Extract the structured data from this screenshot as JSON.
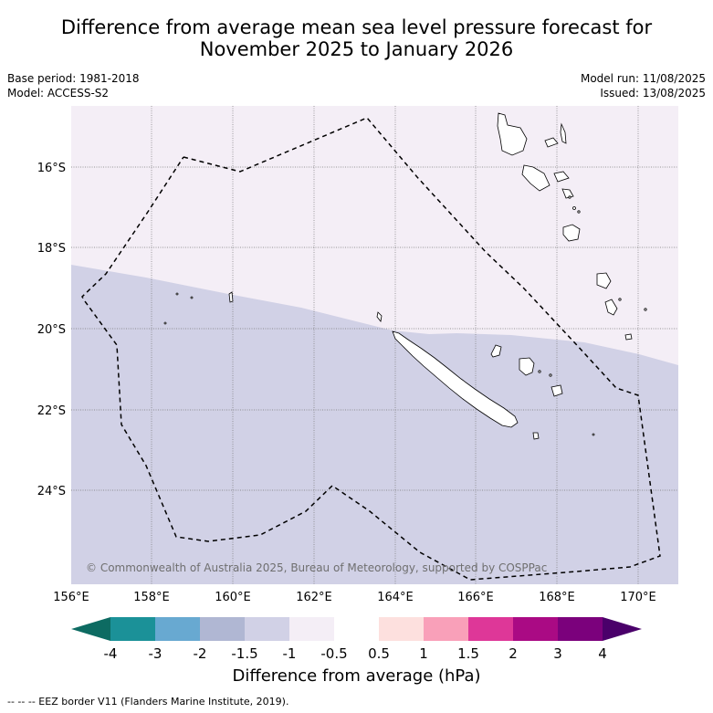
{
  "title_line1": "Difference from average mean sea level pressure forecast for",
  "title_line2": "November 2025 to January 2026",
  "base_period": "Base period: 1981-2018",
  "model": "Model: ACCESS-S2",
  "model_run": "Model run: 11/08/2025",
  "issued": "Issued: 13/08/2025",
  "copyright": "© Commonwealth of Australia 2025, Bureau of Meteorology, supported by COSPPac",
  "lon_ticks": [
    "156°E",
    "158°E",
    "160°E",
    "162°E",
    "164°E",
    "166°E",
    "168°E",
    "170°E"
  ],
  "lat_ticks": [
    "16°S",
    "18°S",
    "20°S",
    "22°S",
    "24°S"
  ],
  "colorbar": {
    "labels": [
      "-4",
      "-3",
      "-2",
      "-1.5",
      "-1",
      "-0.5",
      "0.5",
      "1",
      "1.5",
      "2",
      "3",
      "4"
    ],
    "colors": [
      "#0d6b62",
      "#1b9198",
      "#68a9d1",
      "#b0b7d3",
      "#d1d1e6",
      "#f4eef6",
      "#ffffff",
      "#fde0de",
      "#f9a0b9",
      "#de3798",
      "#aa0a84",
      "#7b017c",
      "#4a006a"
    ],
    "title": "Difference from average (hPa)"
  },
  "map_colors": {
    "lower_region": "#d1d1e6",
    "upper_region": "#f4eef6",
    "eez": "#000000",
    "land": "#ffffff"
  },
  "eez_legend": "-- -- -- EEZ border V11 (Flanders Marine Institute, 2019)."
}
